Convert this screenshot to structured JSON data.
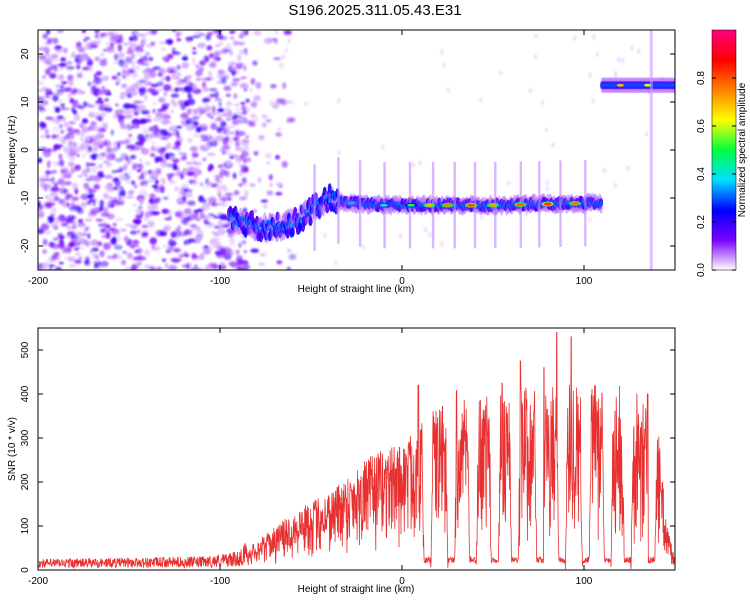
{
  "title": "S196.2025.311.05.43.E31",
  "chart_data": [
    {
      "type": "heatmap",
      "xlabel": "Height of straight line (km)",
      "ylabel": "Frequency (Hz)",
      "xlim": [
        -200,
        150
      ],
      "ylim": [
        -25,
        25
      ],
      "x_ticks": [
        -200,
        -100,
        0,
        100
      ],
      "y_ticks": [
        -20,
        -10,
        0,
        10,
        20
      ],
      "colorbar": {
        "label": "Normalized spectral amplitude",
        "range": [
          0,
          1
        ],
        "ticks": [
          0.0,
          0.2,
          0.4,
          0.6,
          0.8
        ],
        "tick_labels": [
          "0.0",
          "0.2",
          "0.4",
          "0.6",
          "0.8"
        ],
        "colors": [
          "#ffffff",
          "#7a00ff",
          "#0000ff",
          "#00e0ff",
          "#00ff40",
          "#ffff00",
          "#ff8000",
          "#ff0000",
          "#ff0080"
        ]
      },
      "features": {
        "noise_region_x": [
          -200,
          -85
        ],
        "ridge_track": [
          [
            -95,
            -14
          ],
          [
            -80,
            -16
          ],
          [
            -65,
            -16
          ],
          [
            -55,
            -14
          ],
          [
            -48,
            -12
          ],
          [
            -40,
            -10
          ],
          [
            -30,
            -11
          ],
          [
            -10,
            -11.5
          ],
          [
            0,
            -11.5
          ],
          [
            50,
            -11.5
          ],
          [
            110,
            -11
          ]
        ],
        "high_branch": [
          [
            110,
            13.5
          ],
          [
            150,
            13.5
          ]
        ]
      }
    },
    {
      "type": "line",
      "xlabel": "Height of straight line (km)",
      "ylabel": "SNR (10 * v/v)",
      "xlim": [
        -200,
        150
      ],
      "ylim": [
        0,
        550
      ],
      "x_ticks": [
        -200,
        -100,
        0,
        100
      ],
      "y_ticks": [
        0,
        100,
        200,
        300,
        400,
        500
      ],
      "color": "#e83030",
      "envelope": [
        [
          -200,
          15
        ],
        [
          -110,
          18
        ],
        [
          -90,
          25
        ],
        [
          -80,
          55
        ],
        [
          -70,
          80
        ],
        [
          -60,
          110
        ],
        [
          -50,
          130
        ],
        [
          -40,
          150
        ],
        [
          -30,
          180
        ],
        [
          -20,
          210
        ],
        [
          -10,
          230
        ],
        [
          0,
          240
        ],
        [
          10,
          280
        ],
        [
          20,
          310
        ],
        [
          40,
          330
        ],
        [
          60,
          345
        ],
        [
          80,
          350
        ],
        [
          100,
          355
        ],
        [
          120,
          350
        ],
        [
          135,
          345
        ],
        [
          140,
          300
        ],
        [
          145,
          100
        ],
        [
          150,
          20
        ]
      ],
      "dips_x": [
        14,
        27,
        39,
        51,
        62,
        76,
        88,
        101,
        113,
        124,
        137
      ],
      "spikes": [
        [
          9,
          420
        ],
        [
          30,
          408
        ],
        [
          55,
          425
        ],
        [
          65,
          475
        ],
        [
          78,
          460
        ],
        [
          85,
          540
        ],
        [
          93,
          530
        ],
        [
          100,
          460
        ],
        [
          135,
          400
        ]
      ]
    }
  ]
}
